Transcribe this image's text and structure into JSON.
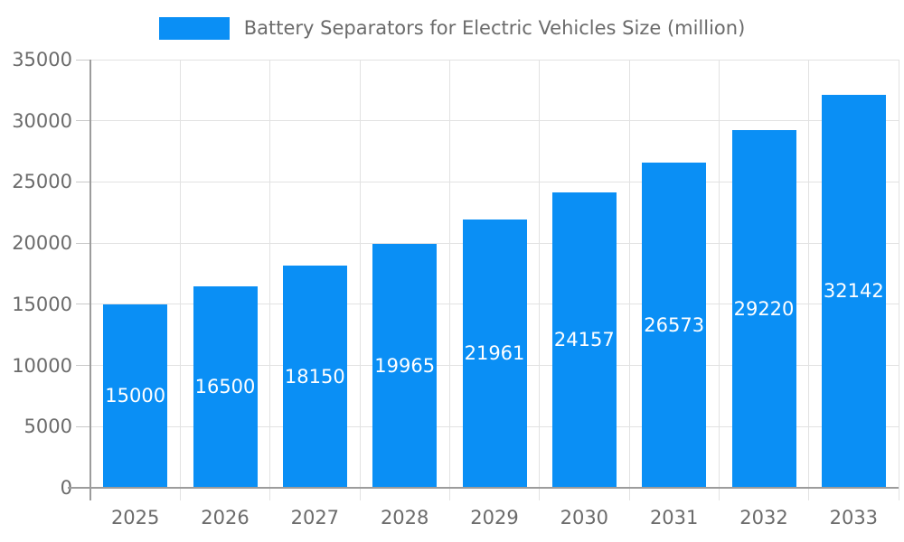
{
  "legend": {
    "series_label": "Battery Separators for Electric Vehicles Size (million)"
  },
  "chart_data": {
    "type": "bar",
    "title": "Battery Separators for Electric Vehicles Size (million)",
    "categories": [
      "2025",
      "2026",
      "2027",
      "2028",
      "2029",
      "2030",
      "2031",
      "2032",
      "2033"
    ],
    "series": [
      {
        "name": "Battery Separators for Electric Vehicles Size (million)",
        "values": [
          15000,
          16500,
          18150,
          19965,
          21961,
          24157,
          26573,
          29220,
          32142
        ]
      }
    ],
    "value_labels": "inside-center-white",
    "xlabel": "",
    "ylabel": "",
    "ylim": [
      0,
      35000
    ],
    "yticks": [
      0,
      5000,
      10000,
      15000,
      20000,
      25000,
      30000,
      35000
    ],
    "grid": "horizontal-and-vertical",
    "legend_position": "top-center",
    "colors": {
      "bar": "#0a8ff5",
      "value_text": "#ffffff",
      "axis_text": "#6b6b6b",
      "grid_line": "#e2e2e2",
      "axis_line": "#9c9c9c",
      "tick_line": "#c9c9c9",
      "background": "#ffffff"
    }
  }
}
